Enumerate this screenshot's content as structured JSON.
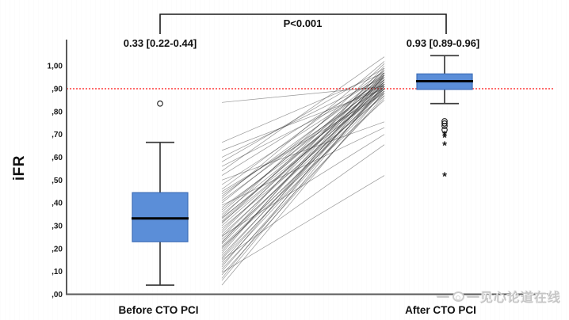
{
  "watermark": {
    "dash": "一",
    "text": "一见心论道在线"
  },
  "chart_data": {
    "type": "box-paired",
    "title": "",
    "ylabel": "iFR",
    "categories": [
      "Before CTO PCI",
      "After CTO PCI"
    ],
    "annotation": {
      "text": "P<0.001"
    },
    "stat_labels": [
      "0.33 [0.22-0.44]",
      "0.93 [0.89-0.96]"
    ],
    "ylim": [
      0.0,
      1.08
    ],
    "grid": false,
    "reference_line": {
      "value": 0.9,
      "color": "#ff1414",
      "style": "dotted"
    },
    "y_ticks": [
      {
        "label": "1,00",
        "value": 1.0
      },
      {
        "label": ",90",
        "value": 0.9
      },
      {
        "label": ",80",
        "value": 0.8
      },
      {
        "label": ",70",
        "value": 0.7
      },
      {
        "label": ",60",
        "value": 0.6
      },
      {
        "label": ",50",
        "value": 0.5
      },
      {
        "label": ",40",
        "value": 0.4
      },
      {
        "label": ",30",
        "value": 0.3
      },
      {
        "label": ",20",
        "value": 0.2
      },
      {
        "label": ",10",
        "value": 0.1
      },
      {
        "label": ",00",
        "value": 0.0
      }
    ],
    "boxes": [
      {
        "category": "Before CTO PCI",
        "median": 0.332,
        "q1": 0.23,
        "q3": 0.445,
        "whisker_low": 0.04,
        "whisker_high": 0.665,
        "outliers_circle": [
          0.835
        ],
        "outliers_star": []
      },
      {
        "category": "After CTO PCI",
        "median": 0.933,
        "q1": 0.897,
        "q3": 0.965,
        "whisker_low": 0.835,
        "whisker_high": 1.045,
        "outliers_circle": [
          0.758,
          0.748,
          0.737,
          0.72
        ],
        "outliers_star": [
          0.7,
          0.69,
          0.655,
          0.52
        ]
      }
    ],
    "pairs": [
      [
        0.04,
        0.89
      ],
      [
        0.06,
        0.92
      ],
      [
        0.07,
        0.96
      ],
      [
        0.085,
        0.87
      ],
      [
        0.095,
        0.52
      ],
      [
        0.1,
        0.91
      ],
      [
        0.11,
        0.86
      ],
      [
        0.12,
        0.97
      ],
      [
        0.13,
        0.9
      ],
      [
        0.14,
        0.93
      ],
      [
        0.15,
        0.655
      ],
      [
        0.155,
        0.88
      ],
      [
        0.16,
        0.94
      ],
      [
        0.17,
        0.91
      ],
      [
        0.18,
        0.99
      ],
      [
        0.19,
        0.96
      ],
      [
        0.2,
        0.9
      ],
      [
        0.205,
        0.85
      ],
      [
        0.21,
        0.88
      ],
      [
        0.22,
        0.93
      ],
      [
        0.225,
        1.0
      ],
      [
        0.23,
        0.92
      ],
      [
        0.24,
        0.89
      ],
      [
        0.25,
        0.95
      ],
      [
        0.255,
        0.7
      ],
      [
        0.26,
        0.91
      ],
      [
        0.27,
        0.97
      ],
      [
        0.28,
        0.94
      ],
      [
        0.29,
        0.87
      ],
      [
        0.3,
        0.92
      ],
      [
        0.31,
        0.98
      ],
      [
        0.315,
        0.9
      ],
      [
        0.32,
        0.95
      ],
      [
        0.33,
        0.93
      ],
      [
        0.335,
        0.89
      ],
      [
        0.34,
        1.01
      ],
      [
        0.35,
        0.92
      ],
      [
        0.36,
        0.96
      ],
      [
        0.37,
        0.94
      ],
      [
        0.38,
        0.9
      ],
      [
        0.39,
        0.73
      ],
      [
        0.4,
        0.97
      ],
      [
        0.41,
        0.93
      ],
      [
        0.42,
        1.02
      ],
      [
        0.43,
        0.95
      ],
      [
        0.44,
        0.91
      ],
      [
        0.45,
        0.88
      ],
      [
        0.46,
        0.98
      ],
      [
        0.48,
        0.94
      ],
      [
        0.5,
        0.755
      ],
      [
        0.52,
        0.96
      ],
      [
        0.54,
        1.04
      ],
      [
        0.56,
        0.92
      ],
      [
        0.58,
        0.99
      ],
      [
        0.6,
        0.95
      ],
      [
        0.63,
        0.9
      ],
      [
        0.665,
        0.97
      ],
      [
        0.84,
        0.91
      ]
    ],
    "colors": {
      "box_fill": "#5b8ed8",
      "box_border": "#3d6db8",
      "median": "#000000",
      "whisker": "#3c3c3c",
      "axis": "#5a5a5a",
      "pair_line": "#1a1a1a",
      "reference": "#ff1414",
      "tick_text": "#1a1a1a",
      "bracket": "#1a1a1a"
    }
  }
}
